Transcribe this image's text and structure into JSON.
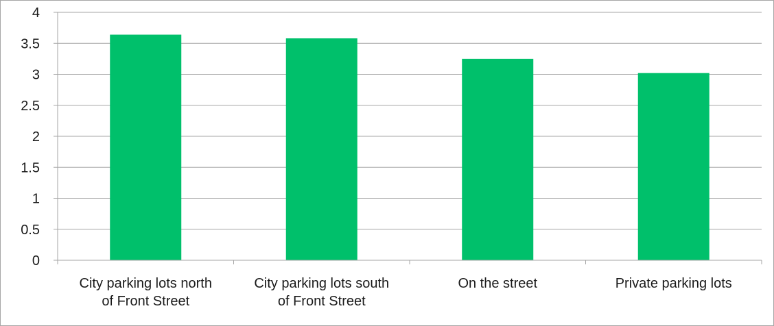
{
  "chart_data": {
    "type": "bar",
    "title": "",
    "xlabel": "",
    "ylabel": "",
    "categories": [
      [
        "City parking lots north",
        "of Front Street"
      ],
      [
        "City parking lots south",
        "of Front Street"
      ],
      [
        "On the street"
      ],
      [
        "Private parking lots"
      ]
    ],
    "values": [
      3.64,
      3.58,
      3.25,
      3.02
    ],
    "ylim": [
      0,
      4
    ],
    "yticks": [
      "0",
      "0.5",
      "1",
      "1.5",
      "2",
      "2.5",
      "3",
      "3.5",
      "4"
    ],
    "grid": true,
    "legend": "none",
    "colors": {
      "bar": "#00c06b",
      "grid": "#a6a6a6",
      "axis": "#a6a6a6",
      "text": "#1a1a1a"
    }
  }
}
